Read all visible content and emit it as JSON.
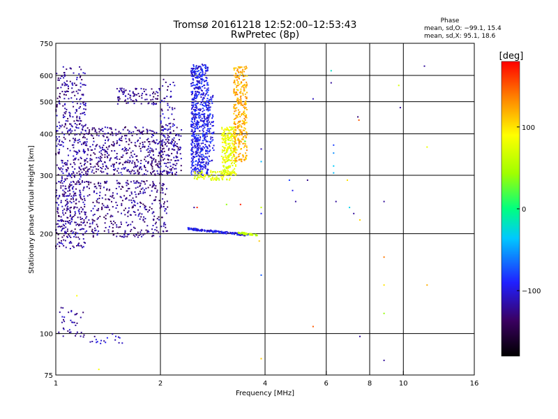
{
  "header": {
    "title_line1": "Tromsø 20161218 12:52:00–12:53:43",
    "title_line2": "RwPretec (8p)"
  },
  "phase_stats": {
    "heading": "Phase",
    "line_o": "mean, sd,O: −99.1, 15.4",
    "line_x": "mean, sd,X:  95.1, 18.6"
  },
  "colorbar": {
    "label": "[deg]",
    "ticks": [
      {
        "label": "100",
        "value": 100
      },
      {
        "label": "0",
        "value": 0
      },
      {
        "label": "−100",
        "value": -100
      }
    ],
    "range": [
      -180,
      180
    ]
  },
  "chart_data": {
    "type": "scatter",
    "title": "Tromsø 20161218 12:52:00–12:53:43",
    "subtitle": "RwPretec (8p)",
    "xlabel": "Frequency [MHz]",
    "ylabel": "Stationary phase Virtual Height [km]",
    "x_scale": "log",
    "y_scale": "log",
    "xlim": [
      1,
      16
    ],
    "ylim": [
      75,
      750
    ],
    "x_ticks": [
      1,
      2,
      4,
      6,
      8,
      10,
      16
    ],
    "x_tick_labels": [
      "1",
      "2",
      "4",
      "6",
      "8",
      "10",
      "16"
    ],
    "y_ticks": [
      75,
      100,
      200,
      300,
      400,
      500,
      600,
      750
    ],
    "y_tick_labels": [
      "75",
      "100",
      "200",
      "300",
      "400",
      "500",
      "600",
      "750"
    ],
    "grid_x": [
      2,
      4,
      6,
      8,
      10
    ],
    "grid_y": [
      100,
      200,
      300,
      400,
      500,
      600
    ],
    "color_variable": "phase [deg]",
    "clusters": [
      {
        "kind": "band",
        "x0": 1.0,
        "x1": 1.22,
        "y0": 180,
        "y1": 640,
        "phase": -120,
        "n": 500
      },
      {
        "kind": "band",
        "x0": 1.0,
        "x1": 2.1,
        "y0": 195,
        "y1": 290,
        "phase": -125,
        "n": 500
      },
      {
        "kind": "band",
        "x0": 1.2,
        "x1": 2.3,
        "y0": 300,
        "y1": 420,
        "phase": -125,
        "n": 550
      },
      {
        "kind": "band",
        "x0": 1.5,
        "x1": 2.0,
        "y0": 490,
        "y1": 550,
        "phase": -125,
        "n": 90
      },
      {
        "kind": "band",
        "x0": 2.0,
        "x1": 2.2,
        "y0": 300,
        "y1": 600,
        "phase": -115,
        "n": 90
      },
      {
        "kind": "band",
        "x0": 2.45,
        "x1": 2.75,
        "y0": 300,
        "y1": 650,
        "phase": -95,
        "n": 650
      },
      {
        "kind": "band",
        "x0": 2.75,
        "x1": 2.85,
        "y0": 330,
        "y1": 530,
        "phase": -95,
        "n": 60
      },
      {
        "kind": "band",
        "x0": 3.0,
        "x1": 3.3,
        "y0": 300,
        "y1": 420,
        "phase": 80,
        "n": 250
      },
      {
        "kind": "band",
        "x0": 3.25,
        "x1": 3.55,
        "y0": 330,
        "y1": 640,
        "phase": 120,
        "n": 330
      },
      {
        "kind": "band",
        "x0": 2.5,
        "x1": 3.2,
        "y0": 290,
        "y1": 310,
        "phase": 75,
        "n": 80
      },
      {
        "kind": "line",
        "x0": 2.4,
        "x1": 3.6,
        "y0": 207,
        "y1": 198,
        "phase": -100,
        "n": 160
      },
      {
        "kind": "line",
        "x0": 3.35,
        "x1": 3.8,
        "y0": 201,
        "y1": 198,
        "phase": 60,
        "n": 50
      },
      {
        "kind": "band",
        "x0": 1.02,
        "x1": 1.2,
        "y0": 98,
        "y1": 120,
        "phase": -115,
        "n": 35
      },
      {
        "kind": "band",
        "x0": 1.2,
        "x1": 1.6,
        "y0": 93,
        "y1": 100,
        "phase": -110,
        "n": 20
      }
    ],
    "isolated_points": [
      {
        "x": 1.15,
        "y": 130,
        "phase": 90
      },
      {
        "x": 1.33,
        "y": 78,
        "phase": 90
      },
      {
        "x": 2.5,
        "y": 240,
        "phase": -120
      },
      {
        "x": 2.55,
        "y": 240,
        "phase": 170
      },
      {
        "x": 3.4,
        "y": 245,
        "phase": 170
      },
      {
        "x": 3.1,
        "y": 245,
        "phase": 40
      },
      {
        "x": 3.5,
        "y": 380,
        "phase": 20
      },
      {
        "x": 3.9,
        "y": 360,
        "phase": -115
      },
      {
        "x": 3.9,
        "y": 330,
        "phase": -40
      },
      {
        "x": 3.9,
        "y": 240,
        "phase": 60
      },
      {
        "x": 3.9,
        "y": 230,
        "phase": -90
      },
      {
        "x": 3.85,
        "y": 190,
        "phase": 110
      },
      {
        "x": 3.9,
        "y": 150,
        "phase": -70
      },
      {
        "x": 3.9,
        "y": 84,
        "phase": 110
      },
      {
        "x": 4.7,
        "y": 290,
        "phase": -80
      },
      {
        "x": 4.8,
        "y": 270,
        "phase": -95
      },
      {
        "x": 4.9,
        "y": 250,
        "phase": -120
      },
      {
        "x": 5.3,
        "y": 290,
        "phase": -125
      },
      {
        "x": 5.5,
        "y": 510,
        "phase": -110
      },
      {
        "x": 5.5,
        "y": 105,
        "phase": 150
      },
      {
        "x": 6.2,
        "y": 620,
        "phase": -20
      },
      {
        "x": 6.2,
        "y": 570,
        "phase": -120
      },
      {
        "x": 6.3,
        "y": 370,
        "phase": -80
      },
      {
        "x": 6.3,
        "y": 350,
        "phase": -55
      },
      {
        "x": 6.3,
        "y": 320,
        "phase": -35
      },
      {
        "x": 6.3,
        "y": 305,
        "phase": -40
      },
      {
        "x": 6.4,
        "y": 250,
        "phase": -120
      },
      {
        "x": 6.9,
        "y": 290,
        "phase": 100
      },
      {
        "x": 7.0,
        "y": 240,
        "phase": -30
      },
      {
        "x": 7.2,
        "y": 230,
        "phase": -120
      },
      {
        "x": 7.4,
        "y": 450,
        "phase": -130
      },
      {
        "x": 7.45,
        "y": 440,
        "phase": 150
      },
      {
        "x": 7.5,
        "y": 220,
        "phase": 105
      },
      {
        "x": 7.5,
        "y": 98,
        "phase": -120
      },
      {
        "x": 8.8,
        "y": 250,
        "phase": -120
      },
      {
        "x": 8.8,
        "y": 170,
        "phase": 140
      },
      {
        "x": 8.8,
        "y": 140,
        "phase": 100
      },
      {
        "x": 8.8,
        "y": 115,
        "phase": 40
      },
      {
        "x": 8.8,
        "y": 83,
        "phase": -120
      },
      {
        "x": 9.7,
        "y": 560,
        "phase": 70
      },
      {
        "x": 9.8,
        "y": 480,
        "phase": -120
      },
      {
        "x": 11.5,
        "y": 640,
        "phase": -120
      },
      {
        "x": 11.7,
        "y": 365,
        "phase": 80
      },
      {
        "x": 11.7,
        "y": 140,
        "phase": 120
      }
    ]
  }
}
